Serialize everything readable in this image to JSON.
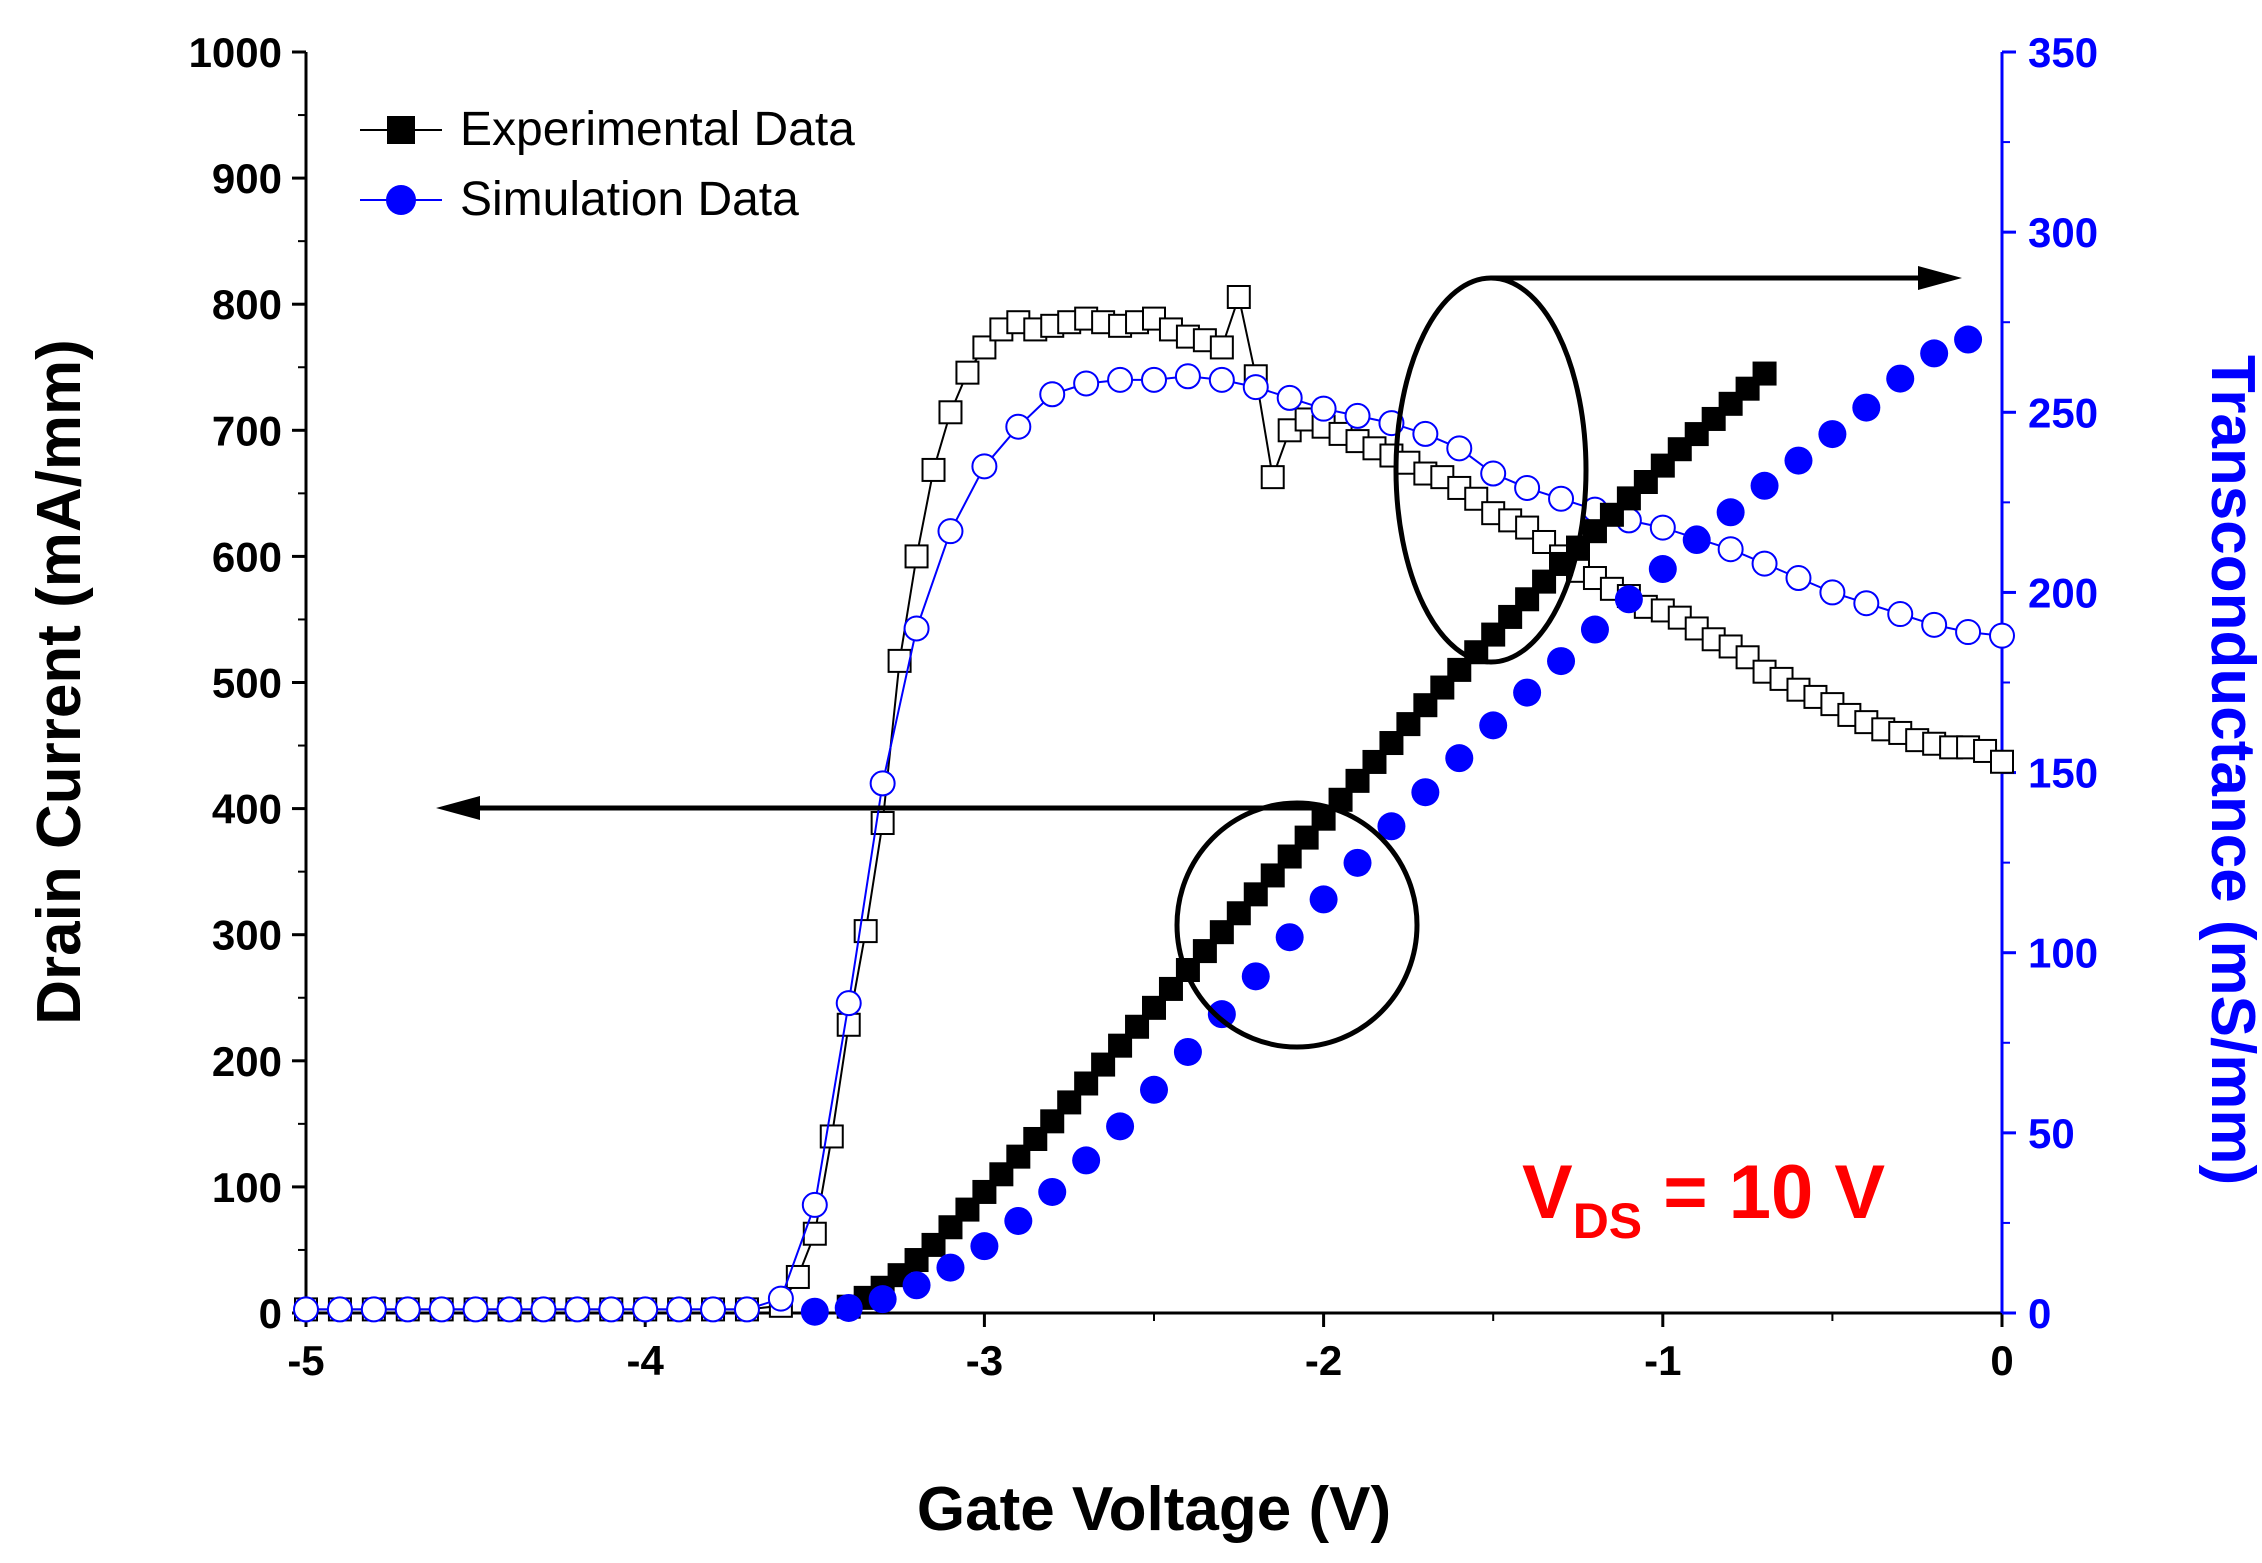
{
  "colors": {
    "experimental": "#000000",
    "simulation": "#0000ff",
    "axis_left": "#000000",
    "axis_right": "#0000ff",
    "annotation": "#ff0000"
  },
  "chart_data": {
    "type": "scatter",
    "xlabel": "Gate Voltage (V)",
    "ylabel_left": "Drain Current (mA/mm)",
    "ylabel_right": "Transconductance (mS/mm)",
    "xlim": [
      -5,
      0
    ],
    "ylim_left": [
      0,
      1000
    ],
    "ylim_right": [
      0,
      350
    ],
    "x_ticks": [
      {
        "value": -5,
        "label": "-5"
      },
      {
        "value": -4,
        "label": "-4"
      },
      {
        "value": -3,
        "label": "-3"
      },
      {
        "value": -2,
        "label": "-2"
      },
      {
        "value": -1,
        "label": "-1"
      },
      {
        "value": 0,
        "label": "0"
      }
    ],
    "y_left_ticks": [
      {
        "value": 0,
        "label": "0"
      },
      {
        "value": 100,
        "label": "100"
      },
      {
        "value": 200,
        "label": "200"
      },
      {
        "value": 300,
        "label": "300"
      },
      {
        "value": 400,
        "label": "400"
      },
      {
        "value": 500,
        "label": "500"
      },
      {
        "value": 600,
        "label": "600"
      },
      {
        "value": 700,
        "label": "700"
      },
      {
        "value": 800,
        "label": "800"
      },
      {
        "value": 900,
        "label": "900"
      },
      {
        "value": 1000,
        "label": "1000"
      }
    ],
    "y_right_ticks": [
      {
        "value": 0,
        "label": "0"
      },
      {
        "value": 50,
        "label": "50"
      },
      {
        "value": 100,
        "label": "100"
      },
      {
        "value": 150,
        "label": "150"
      },
      {
        "value": 200,
        "label": "200"
      },
      {
        "value": 250,
        "label": "250"
      },
      {
        "value": 300,
        "label": "300"
      },
      {
        "value": 350,
        "label": "350"
      }
    ],
    "legend": {
      "placement": "top-left",
      "entries": [
        {
          "label": "Experimental Data",
          "marker": "square",
          "color": "#000000"
        },
        {
          "label": "Simulation Data",
          "marker": "circle",
          "color": "#0000ff"
        }
      ]
    },
    "annotation": {
      "text": "V",
      "subscript": "DS",
      "suffix": " = 10 V"
    },
    "series": [
      {
        "name": "Experimental drain current",
        "axis": "left",
        "marker": "square",
        "filled": true,
        "color": "#000000",
        "start_x": -3.4,
        "step": 0.05,
        "y": [
          5,
          12,
          20,
          30,
          42,
          54,
          68,
          82,
          96,
          110,
          124,
          138,
          152,
          167,
          182,
          197,
          212,
          227,
          242,
          257,
          272,
          287,
          302,
          317,
          332,
          347,
          362,
          377,
          392,
          407,
          422,
          437,
          452,
          467,
          482,
          496,
          510,
          524,
          538,
          552,
          566,
          580,
          594,
          607,
          620,
          633,
          646,
          659,
          672,
          685,
          697,
          709,
          721,
          733,
          745
        ]
      },
      {
        "name": "Simulation drain current",
        "axis": "left",
        "marker": "circle",
        "filled": true,
        "color": "#0000ff",
        "start_x": -3.5,
        "step": 0.1,
        "y": [
          1,
          4,
          11,
          22,
          36,
          53,
          73,
          96,
          121,
          148,
          177,
          207,
          237,
          267,
          298,
          328,
          357,
          386,
          413,
          440,
          466,
          492,
          517,
          542,
          566,
          590,
          613,
          635,
          656,
          676,
          697,
          718,
          741,
          761,
          772
        ]
      },
      {
        "name": "Experimental transconductance",
        "axis": "right",
        "marker": "square",
        "filled": false,
        "color": "#000000",
        "x": [
          -5.0,
          -4.9,
          -4.8,
          -4.7,
          -4.6,
          -4.5,
          -4.4,
          -4.3,
          -4.2,
          -4.1,
          -4.0,
          -3.9,
          -3.8,
          -3.7,
          -3.6,
          -3.55,
          -3.5,
          -3.45,
          -3.4,
          -3.35,
          -3.3,
          -3.25,
          -3.2,
          -3.15,
          -3.1,
          -3.05,
          -3.0,
          -2.95,
          -2.9,
          -2.85,
          -2.8,
          -2.75,
          -2.7,
          -2.65,
          -2.6,
          -2.55,
          -2.5,
          -2.45,
          -2.4,
          -2.35,
          -2.3,
          -2.25,
          -2.2,
          -2.15,
          -2.1,
          -2.05,
          -2.0,
          -1.95,
          -1.9,
          -1.85,
          -1.8,
          -1.75,
          -1.7,
          -1.65,
          -1.6,
          -1.55,
          -1.5,
          -1.45,
          -1.4,
          -1.35,
          -1.3,
          -1.25,
          -1.2,
          -1.15,
          -1.1,
          -1.05,
          -1.0,
          -0.95,
          -0.9,
          -0.85,
          -0.8,
          -0.75,
          -0.7,
          -0.65,
          -0.6,
          -0.55,
          -0.5,
          -0.45,
          -0.4,
          -0.35,
          -0.3,
          -0.25,
          -0.2,
          -0.15,
          -0.1,
          -0.05,
          0.0
        ],
        "y": [
          1,
          1,
          1,
          1,
          1,
          1,
          1,
          1,
          1,
          1,
          1,
          1,
          1,
          1,
          2,
          10,
          22,
          49,
          80,
          106,
          136,
          181,
          210,
          234,
          250,
          261,
          268,
          273,
          275,
          273,
          274,
          275,
          276,
          275,
          274,
          275,
          276,
          273,
          271,
          270,
          268,
          282,
          260,
          232,
          245,
          248,
          246,
          244,
          242,
          240,
          238,
          236,
          233,
          232,
          229,
          226,
          222,
          220,
          218,
          214,
          210,
          206,
          204,
          201,
          199,
          196,
          195,
          193,
          190,
          187,
          185,
          182,
          178,
          176,
          173,
          171,
          169,
          166,
          164,
          162,
          161,
          159,
          158,
          157,
          157,
          156,
          153
        ]
      },
      {
        "name": "Simulation transconductance",
        "axis": "right",
        "marker": "circle",
        "filled": false,
        "color": "#0000ff",
        "x": [
          -5.0,
          -4.9,
          -4.8,
          -4.7,
          -4.6,
          -4.5,
          -4.4,
          -4.3,
          -4.2,
          -4.1,
          -4.0,
          -3.9,
          -3.8,
          -3.7,
          -3.6,
          -3.5,
          -3.4,
          -3.3,
          -3.2,
          -3.1,
          -3.0,
          -2.9,
          -2.8,
          -2.7,
          -2.6,
          -2.5,
          -2.4,
          -2.3,
          -2.2,
          -2.1,
          -2.0,
          -1.9,
          -1.8,
          -1.7,
          -1.6,
          -1.5,
          -1.4,
          -1.3,
          -1.2,
          -1.1,
          -1.0,
          -0.9,
          -0.8,
          -0.7,
          -0.6,
          -0.5,
          -0.4,
          -0.3,
          -0.2,
          -0.1,
          0.0
        ],
        "y": [
          1,
          1,
          1,
          1,
          1,
          1,
          1,
          1,
          1,
          1,
          1,
          1,
          1,
          1,
          4,
          30,
          86,
          147,
          190,
          217,
          235,
          246,
          255,
          258,
          259,
          259,
          260,
          259,
          257,
          254,
          251,
          249,
          247,
          244,
          240,
          233,
          229,
          226,
          223,
          220,
          218,
          215,
          212,
          208,
          204,
          200,
          197,
          194,
          191,
          189,
          188
        ]
      }
    ]
  }
}
